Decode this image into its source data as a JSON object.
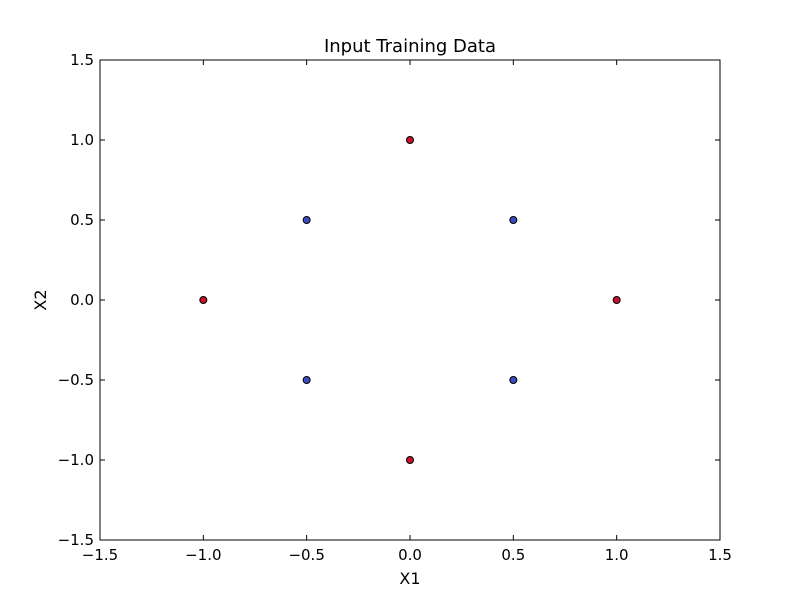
{
  "chart_data": {
    "type": "scatter",
    "title": "Input Training Data",
    "xlabel": "X1",
    "ylabel": "X2",
    "xlim": [
      -1.5,
      1.5
    ],
    "ylim": [
      -1.5,
      1.5
    ],
    "xticks": [
      -1.5,
      -1.0,
      -0.5,
      0.0,
      0.5,
      1.0,
      1.5
    ],
    "yticks": [
      -1.5,
      -1.0,
      -0.5,
      0.0,
      0.5,
      1.0,
      1.5
    ],
    "xtick_labels": [
      "−1.5",
      "−1.0",
      "−0.5",
      "0.0",
      "0.5",
      "1.0",
      "1.5"
    ],
    "ytick_labels": [
      "−1.5",
      "−1.0",
      "−0.5",
      "0.0",
      "0.5",
      "1.0",
      "1.5"
    ],
    "grid": false,
    "legend": "none",
    "series": [
      {
        "color": "#c8102e",
        "points": [
          {
            "x": 0.0,
            "y": 1.0
          },
          {
            "x": -1.0,
            "y": 0.0
          },
          {
            "x": 1.0,
            "y": 0.0
          },
          {
            "x": 0.0,
            "y": -1.0
          }
        ]
      },
      {
        "color": "#3b4cc0",
        "points": [
          {
            "x": -0.5,
            "y": 0.5
          },
          {
            "x": 0.5,
            "y": 0.5
          },
          {
            "x": -0.5,
            "y": -0.5
          },
          {
            "x": 0.5,
            "y": -0.5
          }
        ]
      }
    ]
  }
}
